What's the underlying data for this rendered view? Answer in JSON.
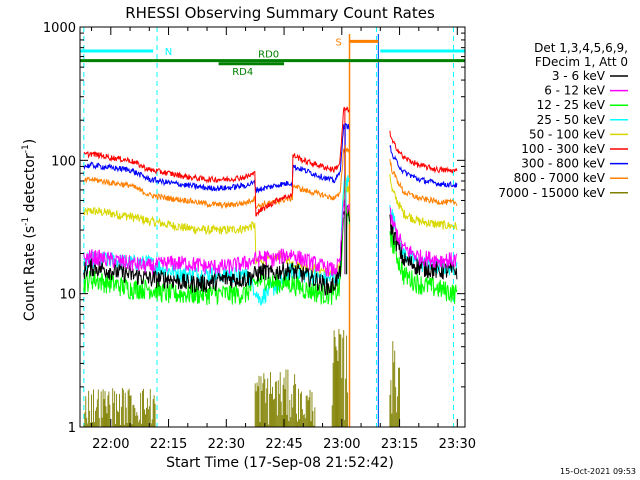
{
  "chart_data": {
    "type": "line",
    "title": "RHESSI Observing Summary Count Rates",
    "xlabel": "Start Time (17-Sep-08 21:52:42)",
    "ylabel_main": "Count Rate (s",
    "ylabel_sup1": "-1",
    "ylabel_mid": " detector",
    "ylabel_sup2": "-1",
    "ylabel_end": ")",
    "yscale": "log",
    "ylim": [
      1,
      1000
    ],
    "xlim_minutes": [
      -8,
      92
    ],
    "x_ticks": [
      {
        "label": "22:00",
        "minute": 0
      },
      {
        "label": "22:15",
        "minute": 15
      },
      {
        "label": "22:30",
        "minute": 30
      },
      {
        "label": "22:45",
        "minute": 45
      },
      {
        "label": "23:00",
        "minute": 60
      },
      {
        "label": "23:15",
        "minute": 75
      },
      {
        "label": "23:30",
        "minute": 90
      }
    ],
    "y_ticks": [
      {
        "label": "1",
        "value": 1
      },
      {
        "label": "10",
        "value": 10
      },
      {
        "label": "100",
        "value": 100
      },
      {
        "label": "1000",
        "value": 1000
      }
    ],
    "legend_header": [
      "Det 1,3,4,5,6,9,",
      "FDecim 1, Att 0"
    ],
    "series": [
      {
        "name": "3 - 6 keV",
        "color": "#000000"
      },
      {
        "name": "6 - 12 keV",
        "color": "#ff00ff"
      },
      {
        "name": "12 - 25 keV",
        "color": "#00ff00"
      },
      {
        "name": "25 - 50 keV",
        "color": "#00ffff"
      },
      {
        "name": "50 - 100 keV",
        "color": "#d8d800"
      },
      {
        "name": "100 - 300 keV",
        "color": "#ff0000"
      },
      {
        "name": "300 - 800 keV",
        "color": "#0000ff"
      },
      {
        "name": "800 - 7000 keV",
        "color": "#ff8000"
      },
      {
        "name": "7000 - 15000 keV",
        "color": "#808000"
      }
    ],
    "series_profiles": [
      [
        [
          -7,
          15
        ],
        [
          -5,
          16
        ],
        [
          0,
          15
        ],
        [
          5,
          14
        ],
        [
          10,
          13
        ],
        [
          15,
          13
        ],
        [
          20,
          12
        ],
        [
          25,
          12
        ],
        [
          30,
          13
        ],
        [
          35,
          13
        ],
        [
          37.5,
          14
        ],
        [
          40,
          15
        ],
        [
          42,
          14
        ],
        [
          44,
          15
        ],
        [
          47,
          15
        ],
        [
          50,
          14
        ],
        [
          55,
          12
        ],
        [
          57,
          11
        ],
        [
          58,
          12
        ],
        [
          59.5,
          14
        ],
        [
          60.5,
          40
        ],
        [
          62,
          40
        ]
      ],
      [
        [
          -7,
          18
        ],
        [
          -5,
          19
        ],
        [
          0,
          18
        ],
        [
          5,
          17
        ],
        [
          10,
          16
        ],
        [
          15,
          17
        ],
        [
          20,
          17
        ],
        [
          25,
          16
        ],
        [
          30,
          16
        ],
        [
          35,
          17
        ],
        [
          37.5,
          18
        ],
        [
          40,
          19
        ],
        [
          42,
          18
        ],
        [
          44,
          19
        ],
        [
          47,
          20
        ],
        [
          50,
          18
        ],
        [
          55,
          16
        ],
        [
          58,
          15
        ],
        [
          59.5,
          17
        ],
        [
          60.5,
          45
        ],
        [
          62,
          45
        ]
      ],
      [
        [
          -7,
          12
        ],
        [
          -5,
          13
        ],
        [
          0,
          12
        ],
        [
          5,
          11
        ],
        [
          10,
          11
        ],
        [
          15,
          10
        ],
        [
          20,
          10
        ],
        [
          25,
          10
        ],
        [
          30,
          10
        ],
        [
          35,
          10
        ],
        [
          37.5,
          12
        ],
        [
          40,
          13
        ],
        [
          42,
          12
        ],
        [
          44,
          12
        ],
        [
          47,
          12
        ],
        [
          50,
          11
        ],
        [
          55,
          10
        ],
        [
          58,
          10
        ],
        [
          59.5,
          11
        ],
        [
          60.5,
          35
        ],
        [
          62,
          35
        ]
      ],
      [
        [
          -7,
          17
        ],
        [
          -5,
          18
        ],
        [
          0,
          18
        ],
        [
          5,
          17
        ],
        [
          10,
          17
        ],
        [
          15,
          15
        ],
        [
          20,
          14
        ],
        [
          25,
          14
        ],
        [
          30,
          14
        ],
        [
          35,
          14
        ],
        [
          37.5,
          11
        ],
        [
          38.5,
          9
        ],
        [
          40,
          10
        ],
        [
          42,
          11
        ],
        [
          44,
          12
        ],
        [
          47,
          15
        ],
        [
          50,
          14
        ],
        [
          55,
          13
        ],
        [
          58,
          13
        ],
        [
          59.5,
          14
        ],
        [
          60.5,
          70
        ],
        [
          62,
          70
        ]
      ],
      [
        [
          -7,
          40
        ],
        [
          -5,
          42
        ],
        [
          0,
          40
        ],
        [
          5,
          38
        ],
        [
          10,
          35
        ],
        [
          15,
          33
        ],
        [
          20,
          31
        ],
        [
          25,
          30
        ],
        [
          30,
          30
        ],
        [
          35,
          31
        ],
        [
          37.5,
          33
        ],
        [
          37.6,
          17
        ],
        [
          40,
          18
        ],
        [
          42,
          18
        ],
        [
          44,
          20
        ],
        [
          47,
          17
        ],
        [
          50,
          16
        ],
        [
          55,
          15
        ],
        [
          58,
          14
        ],
        [
          59.5,
          16
        ],
        [
          60.5,
          60
        ],
        [
          62,
          60
        ]
      ],
      [
        [
          -7,
          110
        ],
        [
          -5,
          112
        ],
        [
          0,
          105
        ],
        [
          5,
          100
        ],
        [
          10,
          85
        ],
        [
          15,
          80
        ],
        [
          20,
          75
        ],
        [
          25,
          72
        ],
        [
          30,
          72
        ],
        [
          35,
          75
        ],
        [
          37.5,
          80
        ],
        [
          37.6,
          40
        ],
        [
          40,
          44
        ],
        [
          42,
          48
        ],
        [
          44,
          52
        ],
        [
          47.2,
          55
        ],
        [
          47.3,
          110
        ],
        [
          50,
          100
        ],
        [
          55,
          90
        ],
        [
          58,
          85
        ],
        [
          59.5,
          95
        ],
        [
          60.5,
          240
        ],
        [
          62,
          240
        ]
      ],
      [
        [
          -7,
          90
        ],
        [
          -5,
          92
        ],
        [
          0,
          88
        ],
        [
          5,
          85
        ],
        [
          10,
          72
        ],
        [
          15,
          68
        ],
        [
          20,
          65
        ],
        [
          25,
          62
        ],
        [
          30,
          62
        ],
        [
          35,
          65
        ],
        [
          37.5,
          68
        ],
        [
          37.6,
          60
        ],
        [
          40,
          62
        ],
        [
          42,
          64
        ],
        [
          44,
          66
        ],
        [
          47.2,
          68
        ],
        [
          47.3,
          90
        ],
        [
          50,
          85
        ],
        [
          55,
          75
        ],
        [
          58,
          70
        ],
        [
          59.5,
          80
        ],
        [
          60.5,
          180
        ],
        [
          62,
          180
        ]
      ],
      [
        [
          -7,
          70
        ],
        [
          -5,
          72
        ],
        [
          0,
          68
        ],
        [
          5,
          65
        ],
        [
          10,
          55
        ],
        [
          15,
          52
        ],
        [
          20,
          50
        ],
        [
          25,
          47
        ],
        [
          30,
          46
        ],
        [
          35,
          48
        ],
        [
          37.5,
          52
        ],
        [
          37.6,
          45
        ],
        [
          40,
          47
        ],
        [
          42,
          48
        ],
        [
          44,
          50
        ],
        [
          47.2,
          52
        ],
        [
          47.3,
          65
        ],
        [
          50,
          60
        ],
        [
          55,
          55
        ],
        [
          58,
          52
        ],
        [
          59.5,
          55
        ],
        [
          60.5,
          120
        ],
        [
          62,
          120
        ]
      ]
    ],
    "series_profiles_after": [
      [
        [
          72.5,
          35
        ],
        [
          73,
          30
        ],
        [
          76,
          18
        ],
        [
          80,
          16
        ],
        [
          85,
          15
        ],
        [
          90,
          15
        ]
      ],
      [
        [
          72.5,
          40
        ],
        [
          73,
          35
        ],
        [
          76,
          22
        ],
        [
          80,
          19
        ],
        [
          85,
          18
        ],
        [
          90,
          18
        ]
      ],
      [
        [
          72.5,
          30
        ],
        [
          73,
          25
        ],
        [
          76,
          14
        ],
        [
          80,
          12
        ],
        [
          85,
          11
        ],
        [
          90,
          10
        ]
      ],
      [
        [
          72.5,
          50
        ],
        [
          73,
          40
        ],
        [
          76,
          20
        ],
        [
          80,
          17
        ],
        [
          85,
          16
        ],
        [
          90,
          16
        ]
      ],
      [
        [
          72.5,
          80
        ],
        [
          73,
          60
        ],
        [
          76,
          40
        ],
        [
          80,
          35
        ],
        [
          85,
          33
        ],
        [
          90,
          32
        ]
      ],
      [
        [
          72.5,
          160
        ],
        [
          73,
          140
        ],
        [
          76,
          105
        ],
        [
          80,
          92
        ],
        [
          85,
          85
        ],
        [
          90,
          83
        ]
      ],
      [
        [
          72.5,
          130
        ],
        [
          73,
          110
        ],
        [
          76,
          82
        ],
        [
          80,
          72
        ],
        [
          85,
          67
        ],
        [
          90,
          65
        ]
      ],
      [
        [
          72.5,
          100
        ],
        [
          73,
          85
        ],
        [
          76,
          58
        ],
        [
          80,
          52
        ],
        [
          85,
          49
        ],
        [
          90,
          48
        ]
      ]
    ],
    "dashed_lines_minutes": [
      -7,
      12,
      69,
      89
    ],
    "orange_vline_minute": 62,
    "blue_vline_minute": 69.5,
    "bars": [
      {
        "label": "N",
        "color": "#00ffff",
        "segments": [
          [
            -8,
            11
          ],
          [
            70,
            92
          ]
        ],
        "y_value": 660
      },
      {
        "label": "S",
        "color": "#ff8000",
        "segments": [
          [
            62,
            69.5
          ]
        ],
        "y_value": 780
      },
      {
        "label": "RD0",
        "color": "#008000",
        "segments": [
          [
            -8,
            92
          ]
        ],
        "y_value": 560
      },
      {
        "label": "RD4",
        "color": "#008000",
        "segments": [
          [
            28,
            45
          ]
        ],
        "y_value": 530
      }
    ],
    "timestamp": "15-Oct-2021 09:53"
  }
}
